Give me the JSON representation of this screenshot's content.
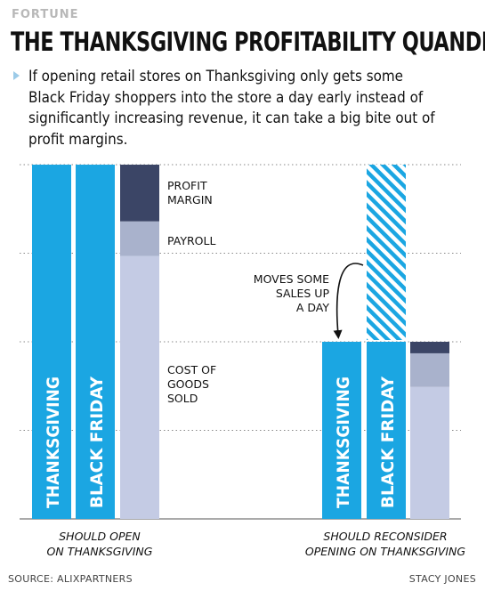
{
  "header": {
    "brand": "FORTUNE",
    "title": "THE THANKSGIVING PROFITABILITY QUANDRY",
    "subtitle": "If opening retail stores on Thanksgiving only gets some Black Friday shoppers into the store a day early instead of significantly increasing revenue, it can take a big bite out of profit margins."
  },
  "footer": {
    "source": "SOURCE: ALIXPARTNERS",
    "credit": "STACY JONES"
  },
  "colors": {
    "bar_blue": "#1ba6e2",
    "profit_margin": "#3b4566",
    "payroll": "#a9b2cc",
    "cost_of_goods": "#c4cbe4",
    "hatch": "#1ba6e2",
    "gridline": "#8a8a8a"
  },
  "chart_data": {
    "type": "bar",
    "title": "THE THANKSGIVING PROFITABILITY QUANDRY",
    "ylim": [
      0,
      4
    ],
    "grid": true,
    "groups": [
      {
        "label": [
          "SHOULD OPEN",
          "ON THANKSGIVING"
        ],
        "bars": [
          {
            "name": "THANKSGIVING",
            "value": 4
          },
          {
            "name": "BLACK FRIDAY",
            "value": 4
          },
          {
            "name": "total",
            "stacked": true,
            "segments": [
              {
                "name": "COST OF GOODS SOLD",
                "value": 2.97
              },
              {
                "name": "PAYROLL",
                "value": 0.39
              },
              {
                "name": "PROFIT MARGIN",
                "value": 0.64
              }
            ]
          }
        ]
      },
      {
        "label": [
          "SHOULD RECONSIDER",
          "OPENING ON THANKSGIVING"
        ],
        "bars": [
          {
            "name": "THANKSGIVING",
            "value": 2
          },
          {
            "name": "BLACK FRIDAY",
            "value": 2,
            "moved_away": 2
          },
          {
            "name": "total",
            "stacked": true,
            "segments": [
              {
                "name": "COST OF GOODS SOLD",
                "value": 1.49
              },
              {
                "name": "PAYROLL",
                "value": 0.38
              },
              {
                "name": "PROFIT MARGIN",
                "value": 0.13
              }
            ]
          }
        ]
      }
    ],
    "legend": [
      {
        "name": "PROFIT MARGIN",
        "lines": [
          "PROFIT",
          "MARGIN"
        ]
      },
      {
        "name": "PAYROLL",
        "lines": [
          "PAYROLL"
        ]
      },
      {
        "name": "COST OF GOODS SOLD",
        "lines": [
          "COST OF",
          "GOODS",
          "SOLD"
        ]
      }
    ],
    "annotation": {
      "lines": [
        "MOVES SOME",
        "SALES UP",
        "A DAY"
      ]
    }
  }
}
